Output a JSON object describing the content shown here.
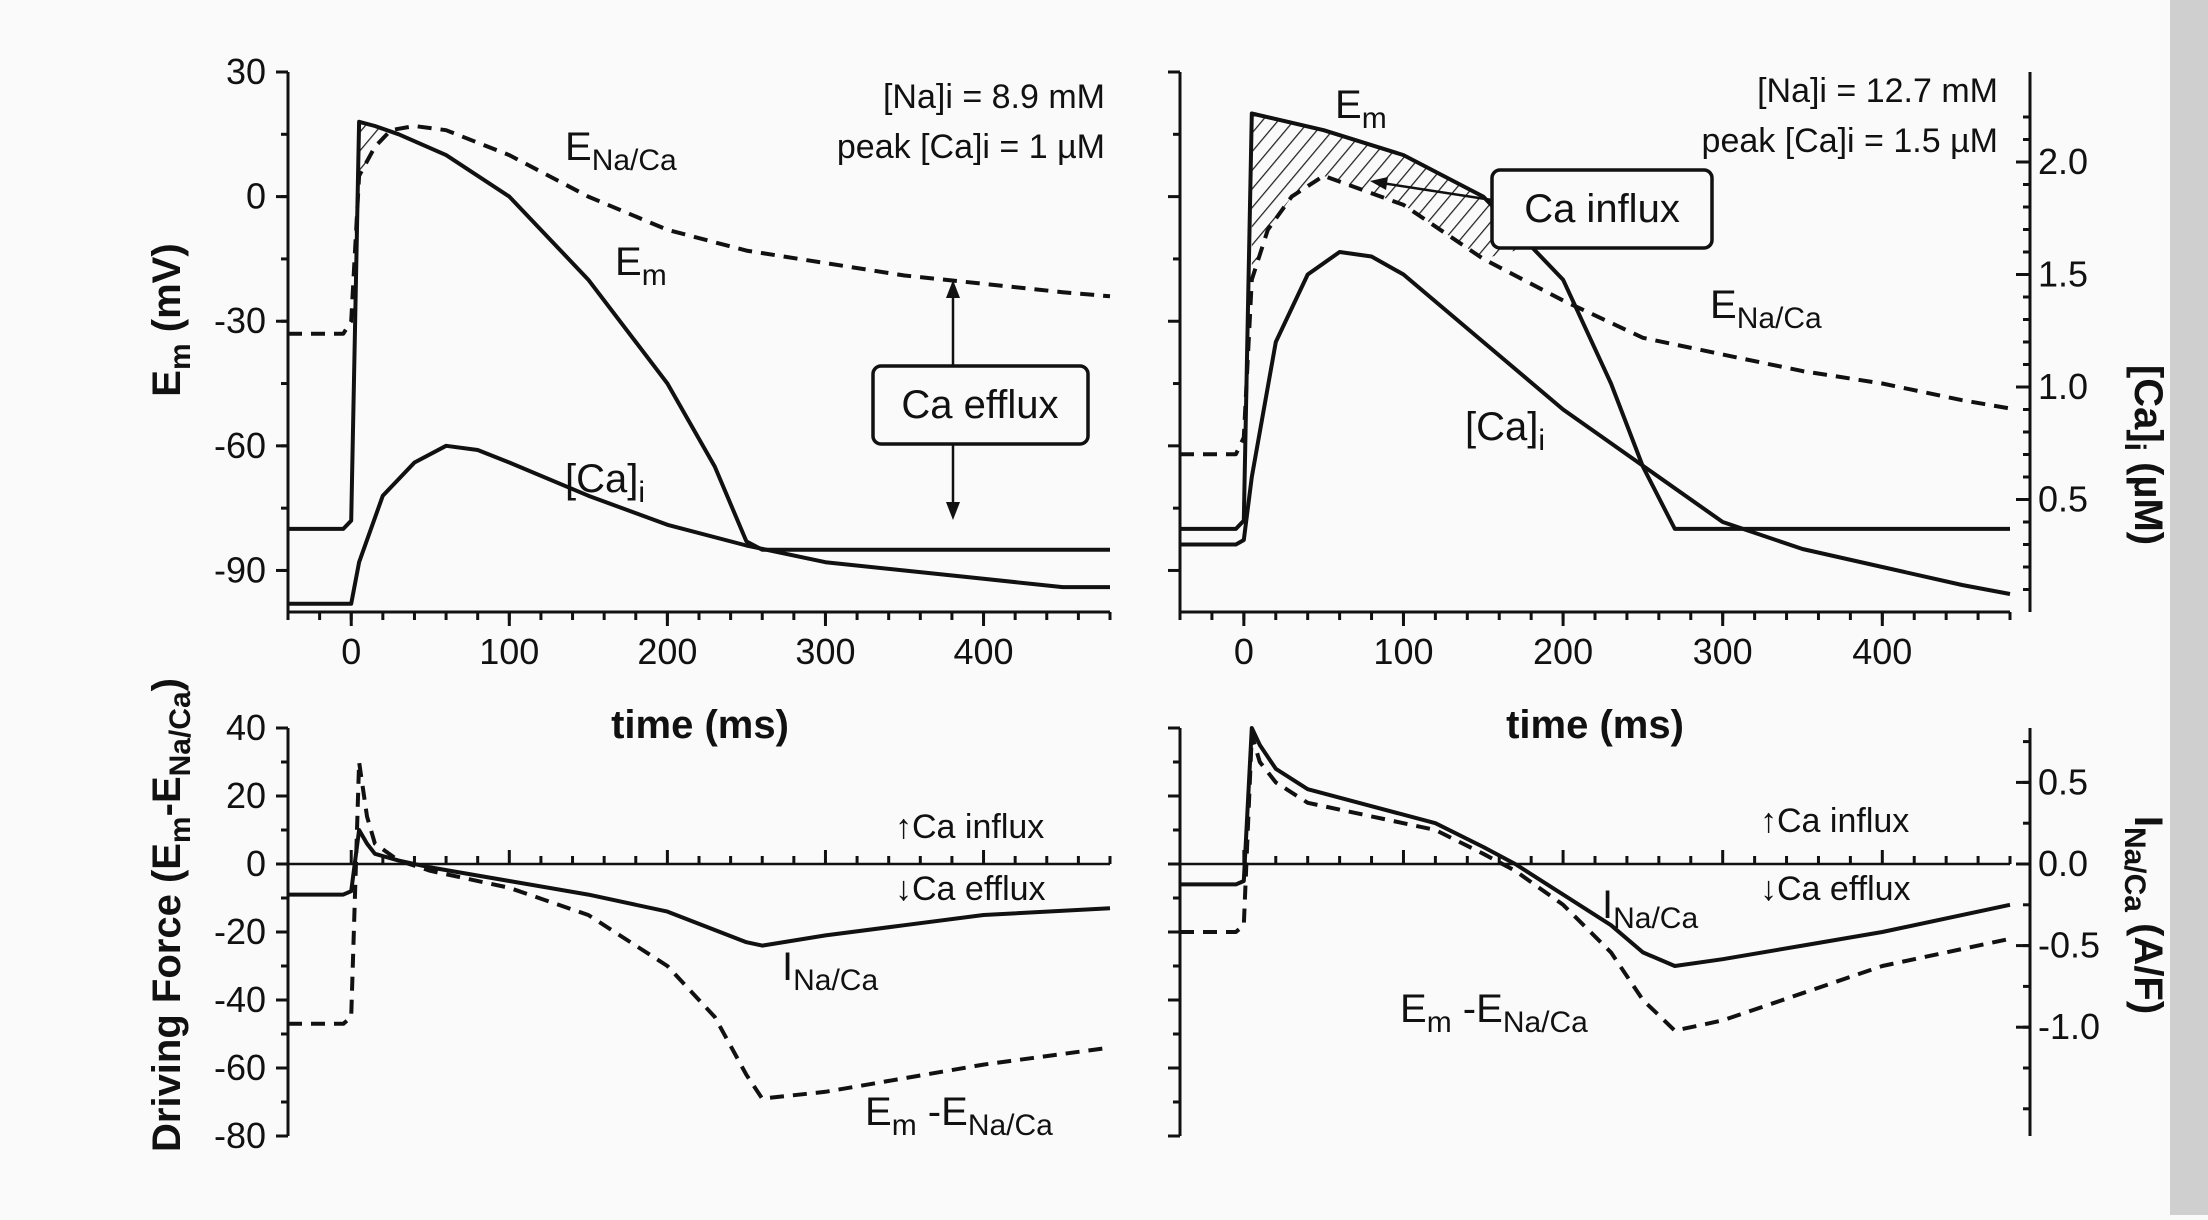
{
  "chart_data": [
    {
      "type": "line",
      "panel": "top-left",
      "annotation_lines": [
        "[Na]i = 8.9 mM",
        "peak [Ca]i = 1 µM"
      ],
      "xlabel": "time (ms)",
      "ylabel": "Em (mV)",
      "xlim": [
        -40,
        480
      ],
      "ylim": [
        -100,
        30
      ],
      "xticks": [
        0,
        100,
        200,
        300,
        400
      ],
      "yticks": [
        30,
        0,
        -30,
        -60,
        -90
      ],
      "series": [
        {
          "name": "Em",
          "style": "solid",
          "x": [
            -40,
            -5,
            0,
            5,
            15,
            30,
            60,
            100,
            150,
            200,
            230,
            250,
            260,
            300,
            400,
            480
          ],
          "y": [
            -80,
            -80,
            -78,
            18,
            17,
            15,
            10,
            0,
            -20,
            -45,
            -65,
            -83,
            -85,
            -85,
            -85,
            -85
          ]
        },
        {
          "name": "ENa/Ca",
          "style": "dashed",
          "x": [
            -40,
            -5,
            0,
            5,
            15,
            25,
            40,
            60,
            100,
            150,
            200,
            250,
            300,
            350,
            400,
            450,
            480
          ],
          "y": [
            -33,
            -33,
            -30,
            5,
            12,
            16,
            17,
            16,
            10,
            0,
            -8,
            -13,
            -16,
            -19,
            -21,
            -23,
            -24
          ]
        },
        {
          "name": "[Ca]i",
          "style": "solid",
          "x": [
            -40,
            -5,
            0,
            5,
            20,
            40,
            60,
            80,
            100,
            150,
            200,
            250,
            300,
            350,
            400,
            450,
            480
          ],
          "y": [
            -98,
            -98,
            -98,
            -88,
            -72,
            -64,
            -60,
            -61,
            -64,
            -72,
            -79,
            -84,
            -88,
            -90,
            -92,
            -94,
            -94
          ]
        }
      ],
      "labels": [
        "Em",
        "ENa/Ca",
        "[Ca]i",
        "Ca efflux"
      ]
    },
    {
      "type": "line",
      "panel": "top-right",
      "annotation_lines": [
        "[Na]i = 12.7 mM",
        "peak [Ca]i = 1.5 µM"
      ],
      "xlabel": "time (ms)",
      "ylabel": "[Ca]i (µM)",
      "xlim": [
        -40,
        480
      ],
      "xticks": [
        0,
        100,
        200,
        300,
        400
      ],
      "y2ticks": [
        2.0,
        1.5,
        1.0,
        0.5
      ],
      "series": [
        {
          "name": "Em",
          "style": "solid",
          "x": [
            -40,
            -5,
            0,
            5,
            50,
            100,
            150,
            200,
            230,
            250,
            270,
            300,
            400,
            480
          ],
          "y": [
            -80,
            -80,
            -78,
            20,
            16,
            10,
            0,
            -20,
            -45,
            -65,
            -80,
            -80,
            -80,
            -80
          ]
        },
        {
          "name": "ENa/Ca",
          "style": "dashed",
          "x": [
            -40,
            -5,
            0,
            5,
            15,
            30,
            50,
            100,
            150,
            200,
            250,
            300,
            350,
            400,
            450,
            480
          ],
          "y": [
            -62,
            -62,
            -58,
            -20,
            -8,
            0,
            5,
            -2,
            -15,
            -25,
            -34,
            -38,
            -42,
            -45,
            -49,
            -51
          ]
        },
        {
          "name": "[Ca]i",
          "style": "solid",
          "x": [
            -40,
            -5,
            0,
            5,
            20,
            40,
            60,
            80,
            100,
            150,
            200,
            250,
            300,
            350,
            400,
            450,
            480
          ],
          "y": [
            0.3,
            0.3,
            0.32,
            0.6,
            1.2,
            1.5,
            1.6,
            1.58,
            1.5,
            1.2,
            0.9,
            0.65,
            0.4,
            0.28,
            0.2,
            0.12,
            0.08
          ]
        }
      ],
      "labels": [
        "Em",
        "ENa/Ca",
        "[Ca]i",
        "Ca influx"
      ]
    },
    {
      "type": "line",
      "panel": "bottom-left",
      "xlabel": "",
      "ylabel": "Driving Force (Em-ENa/Ca)",
      "xlim": [
        -40,
        480
      ],
      "ylim": [
        -80,
        40
      ],
      "yticks": [
        40,
        20,
        0,
        -20,
        -40,
        -60,
        -80
      ],
      "series": [
        {
          "name": "INa/Ca",
          "style": "solid",
          "x": [
            -40,
            -5,
            0,
            5,
            10,
            15,
            30,
            50,
            100,
            150,
            200,
            250,
            260,
            300,
            350,
            400,
            480
          ],
          "y": [
            -9,
            -9,
            -8,
            10,
            6,
            3,
            1,
            -1,
            -5,
            -9,
            -14,
            -23,
            -24,
            -21,
            -18,
            -15,
            -13
          ]
        },
        {
          "name": "Em-ENa/Ca",
          "style": "dashed",
          "x": [
            -40,
            -5,
            0,
            5,
            10,
            15,
            30,
            50,
            100,
            150,
            200,
            230,
            250,
            260,
            300,
            350,
            400,
            480
          ],
          "y": [
            -47,
            -47,
            -45,
            30,
            14,
            6,
            1,
            -2,
            -7,
            -15,
            -30,
            -45,
            -62,
            -69,
            -67,
            -63,
            -59,
            -54
          ]
        }
      ],
      "labels": [
        "↑Ca influx",
        "↓Ca efflux",
        "INa/Ca",
        "Em -ENa/Ca"
      ]
    },
    {
      "type": "line",
      "panel": "bottom-right",
      "xlabel": "",
      "ylabel": "INa/Ca (A/F)",
      "xlim": [
        -40,
        480
      ],
      "y2ticks": [
        0.5,
        0.0,
        -0.5,
        -1.0
      ],
      "series": [
        {
          "name": "INa/Ca",
          "style": "solid",
          "x": [
            -40,
            -5,
            0,
            5,
            10,
            20,
            40,
            80,
            120,
            150,
            170,
            200,
            230,
            250,
            270,
            300,
            350,
            400,
            480
          ],
          "y": [
            -6,
            -6,
            -5,
            40,
            35,
            28,
            22,
            17,
            12,
            5,
            0,
            -9,
            -18,
            -26,
            -30,
            -28,
            -24,
            -20,
            -12
          ]
        },
        {
          "name": "Em-ENa/Ca",
          "style": "dashed",
          "x": [
            -40,
            -5,
            0,
            5,
            10,
            20,
            40,
            80,
            120,
            150,
            170,
            200,
            230,
            250,
            270,
            300,
            350,
            400,
            480
          ],
          "y": [
            -20,
            -20,
            -18,
            38,
            30,
            24,
            18,
            14,
            10,
            3,
            -2,
            -12,
            -26,
            -40,
            -49,
            -46,
            -38,
            -30,
            -22
          ]
        }
      ],
      "labels": [
        "↑Ca influx",
        "↓Ca efflux",
        "INa/Ca",
        "Em -ENa/Ca"
      ]
    }
  ]
}
